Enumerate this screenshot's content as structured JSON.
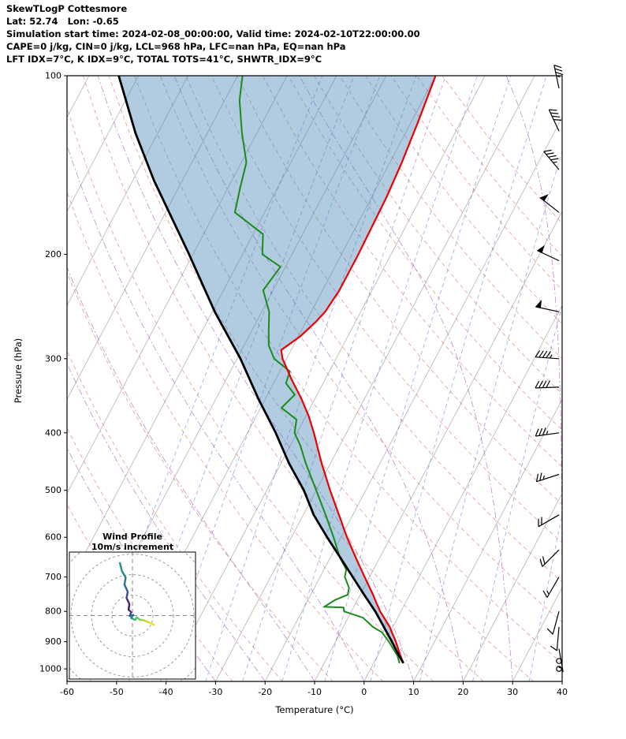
{
  "header": {
    "title": "SkewTLogP Cottesmore",
    "coords": "Lat: 52.74   Lon: -0.65",
    "sim_line": "Simulation start time: 2024-02-08_00:00:00, Valid time: 2024-02-10T22:00:00.00",
    "cape_line": "CAPE=0 j/kg, CIN=0 j/kg, LCL=968 hPa, LFC=nan hPa, EQ=nan hPa",
    "idx_line": "LFT IDX=7°C, K IDX=9°C, TOTAL TOTS=41°C, SHWTR_IDX=9°C"
  },
  "chart_data": {
    "type": "skewt_logp",
    "title": "SkewTLogP Cottesmore",
    "xlabel": "Temperature (°C)",
    "ylabel": "Pressure (hPa)",
    "xlim": [
      -60,
      40
    ],
    "plim": [
      100,
      1050
    ],
    "x_ticks": [
      -60,
      -50,
      -40,
      -30,
      -20,
      -10,
      0,
      10,
      20,
      30,
      40
    ],
    "p_ticks": [
      100,
      200,
      300,
      400,
      500,
      600,
      700,
      800,
      900,
      1000
    ],
    "skew": 0.527,
    "grid": {
      "isotherms": {
        "min": -120,
        "max": 40,
        "step": 10
      },
      "dry_adiabats": {
        "min": -40,
        "max": 160,
        "step": 10
      },
      "moist_adiabats": {
        "min": -30,
        "max": 40,
        "step": 10
      },
      "mixing_ratios_g_kg": [
        0.02,
        0.05,
        0.1,
        0.25,
        0.5,
        1,
        2,
        4,
        8,
        16,
        32
      ]
    },
    "colors": {
      "temperature": "#ee0000",
      "dewpoint": "#1a8c1a",
      "parcel": "#000000",
      "shade": "#4682b4",
      "shade_opacity": 0.42,
      "isotherm": "rgba(150,150,150,0.65)",
      "dry_adiabat": "rgba(213,72,72,0.50)",
      "moist_adiabat": "rgba(158,62,178,0.55)",
      "mixing_ratio": "rgba(82,92,222,0.50)",
      "barb": "#000000"
    },
    "temperature_profile": {
      "pressure_hpa": [
        978,
        950,
        925,
        900,
        868,
        850,
        800,
        775,
        750,
        700,
        650,
        600,
        550,
        500,
        450,
        400,
        375,
        350,
        325,
        300,
        290,
        275,
        260,
        250,
        230,
        200,
        180,
        160,
        140,
        120,
        100
      ],
      "temp_c": [
        6.0,
        4.6,
        3.4,
        2.2,
        0.4,
        -0.6,
        -4.2,
        -5.8,
        -7.4,
        -11.0,
        -14.8,
        -18.8,
        -22.8,
        -27.2,
        -31.8,
        -36.6,
        -39.4,
        -42.8,
        -46.8,
        -50.8,
        -52.0,
        -49.6,
        -48.0,
        -47.2,
        -46.6,
        -46.6,
        -46.8,
        -47.0,
        -47.6,
        -48.6,
        -50.0
      ]
    },
    "dewpoint_profile": {
      "pressure_hpa": [
        978,
        950,
        925,
        900,
        868,
        850,
        820,
        800,
        788,
        786,
        765,
        750,
        730,
        700,
        680,
        650,
        600,
        550,
        500,
        450,
        420,
        400,
        380,
        363,
        345,
        330,
        315,
        300,
        285,
        270,
        250,
        230,
        210,
        200,
        185,
        170,
        155,
        140,
        125,
        110,
        100
      ],
      "dewpoint_c": [
        5.2,
        4.0,
        2.4,
        0.8,
        -1.6,
        -4.0,
        -7.0,
        -11.5,
        -12.0,
        -16.0,
        -14.5,
        -12.5,
        -13.0,
        -15.0,
        -15.5,
        -18.0,
        -21.5,
        -25.5,
        -30.0,
        -35.0,
        -38.0,
        -40.5,
        -41.5,
        -45.8,
        -44.5,
        -47.5,
        -48.0,
        -52.5,
        -55.0,
        -56.5,
        -58.5,
        -62.0,
        -61.0,
        -66.0,
        -68.0,
        -76.0,
        -77.5,
        -79.0,
        -83.0,
        -87.0,
        -89.0
      ]
    },
    "parcel_profile": {
      "pressure_hpa": [
        978,
        950,
        900,
        850,
        800,
        750,
        700,
        650,
        600,
        550,
        500,
        450,
        400,
        350,
        300,
        250,
        200,
        150,
        125,
        100
      ],
      "temp_c": [
        6.0,
        4.3,
        1.4,
        -1.8,
        -5.2,
        -9.2,
        -13.4,
        -17.9,
        -22.8,
        -27.9,
        -32.5,
        -38.4,
        -44.3,
        -51.5,
        -59.3,
        -69.5,
        -80.8,
        -95.8,
        -104.5,
        -114.0
      ]
    },
    "wind_barbs": [
      {
        "p": 1000,
        "speed_kt": 0,
        "dir_deg": 0
      },
      {
        "p": 970,
        "speed_kt": 0,
        "dir_deg": 0
      },
      {
        "p": 925,
        "speed_kt": 5,
        "dir_deg": 170
      },
      {
        "p": 850,
        "speed_kt": 10,
        "dir_deg": 185
      },
      {
        "p": 800,
        "speed_kt": 10,
        "dir_deg": 195
      },
      {
        "p": 700,
        "speed_kt": 15,
        "dir_deg": 210
      },
      {
        "p": 630,
        "speed_kt": 20,
        "dir_deg": 225
      },
      {
        "p": 550,
        "speed_kt": 20,
        "dir_deg": 240
      },
      {
        "p": 470,
        "speed_kt": 25,
        "dir_deg": 252
      },
      {
        "p": 400,
        "speed_kt": 35,
        "dir_deg": 262
      },
      {
        "p": 335,
        "speed_kt": 40,
        "dir_deg": 268
      },
      {
        "p": 300,
        "speed_kt": 45,
        "dir_deg": 274
      },
      {
        "p": 250,
        "speed_kt": 50,
        "dir_deg": 282
      },
      {
        "p": 205,
        "speed_kt": 50,
        "dir_deg": 295
      },
      {
        "p": 170,
        "speed_kt": 50,
        "dir_deg": 308
      },
      {
        "p": 144,
        "speed_kt": 45,
        "dir_deg": 320
      },
      {
        "p": 124,
        "speed_kt": 40,
        "dir_deg": 335
      },
      {
        "p": 105,
        "speed_kt": 35,
        "dir_deg": 348
      }
    ],
    "hodograph": {
      "title_line1": "Wind Profile",
      "title_line2": "10m/s increment",
      "ring_increment_ms": 10,
      "rings_ms": [
        10,
        20,
        30,
        40
      ],
      "trace": [
        {
          "u": 10.5,
          "v": -4.5,
          "c": "#e8e419"
        },
        {
          "u": 8.2,
          "v": -3.4,
          "c": "#c5e021"
        },
        {
          "u": 5.8,
          "v": -2.4,
          "c": "#9cd93c"
        },
        {
          "u": 3.6,
          "v": -2.0,
          "c": "#70cf57"
        },
        {
          "u": 2.2,
          "v": -0.9,
          "c": "#4ac16d"
        },
        {
          "u": 1.3,
          "v": -2.1,
          "c": "#2fb47c"
        },
        {
          "u": -0.6,
          "v": -1.2,
          "c": "#24878e"
        },
        {
          "u": 0.4,
          "v": 0.3,
          "c": "#2d6e8e"
        },
        {
          "u": -1.3,
          "v": -0.2,
          "c": "#39568c"
        },
        {
          "u": -0.6,
          "v": 1.6,
          "c": "#443a83"
        },
        {
          "u": -1.9,
          "v": 2.9,
          "c": "#471365"
        },
        {
          "u": -1.5,
          "v": 5.6,
          "c": "#46267e"
        },
        {
          "u": -2.9,
          "v": 8.6,
          "c": "#3d4e8a"
        },
        {
          "u": -2.3,
          "v": 11.6,
          "c": "#33628d"
        },
        {
          "u": -3.9,
          "v": 15.1,
          "c": "#2b748e"
        },
        {
          "u": -3.3,
          "v": 18.6,
          "c": "#23868d"
        },
        {
          "u": -5.1,
          "v": 21.6,
          "c": "#1f988b"
        },
        {
          "u": -6.1,
          "v": 25.6,
          "c": "#21a585"
        }
      ]
    }
  }
}
